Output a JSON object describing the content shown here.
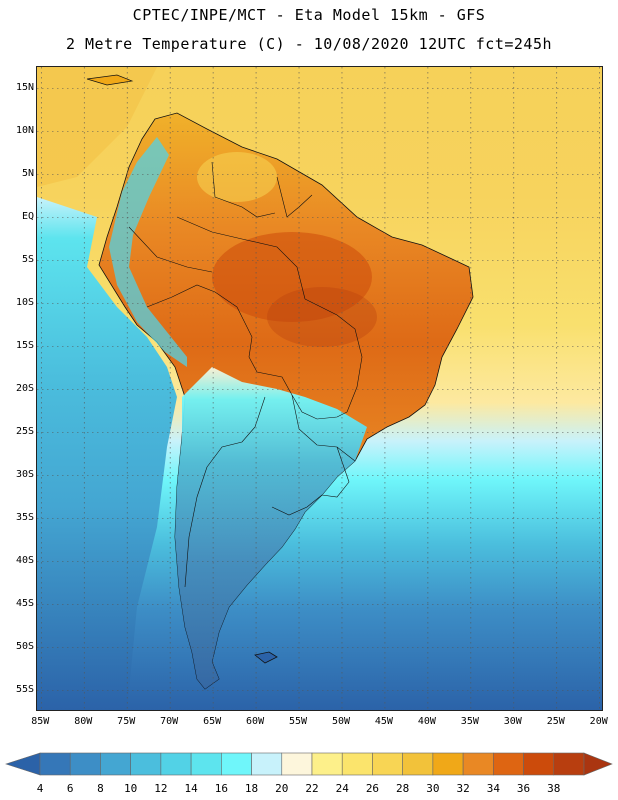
{
  "title": {
    "line1": "CPTEC/INPE/MCT -  Eta Model 15km - GFS",
    "line2": "2 Metre Temperature (C) - 10/08/2020 12UTC fct=245h"
  },
  "map": {
    "lat_ticks": [
      "15N",
      "10N",
      "5N",
      "EQ",
      "5S",
      "10S",
      "15S",
      "20S",
      "25S",
      "30S",
      "35S",
      "40S",
      "45S",
      "50S",
      "55S"
    ],
    "lon_ticks": [
      "85W",
      "80W",
      "75W",
      "70W",
      "65W",
      "60W",
      "55W",
      "50W",
      "45W",
      "40W",
      "35W",
      "30W",
      "25W",
      "20W"
    ],
    "lat_values": [
      15,
      10,
      5,
      0,
      -5,
      -10,
      -15,
      -20,
      -25,
      -30,
      -35,
      -40,
      -45,
      -50,
      -55
    ],
    "lon_values": [
      -85,
      -80,
      -75,
      -70,
      -65,
      -60,
      -55,
      -50,
      -45,
      -40,
      -35,
      -30,
      -25,
      -20
    ],
    "extent": {
      "lon_min": -85.5,
      "lon_max": -19.5,
      "lat_min": -57.5,
      "lat_max": 17.5
    }
  },
  "colorbar": {
    "labels": [
      "4",
      "6",
      "8",
      "10",
      "12",
      "14",
      "16",
      "18",
      "20",
      "22",
      "24",
      "26",
      "28",
      "30",
      "32",
      "34",
      "36",
      "38"
    ],
    "colors": [
      "#2b62a8",
      "#3577b8",
      "#3d8ec6",
      "#44a6d2",
      "#4bbedd",
      "#52d2e6",
      "#5de4ee",
      "#6ff6fa",
      "#c8f2fb",
      "#fdf6dc",
      "#fdf08a",
      "#fbe46c",
      "#f8d554",
      "#f2c23a",
      "#f0a818",
      "#e98824",
      "#de6512",
      "#cc4b0b",
      "#b83e0f",
      "#aa3510"
    ],
    "units": "C"
  }
}
